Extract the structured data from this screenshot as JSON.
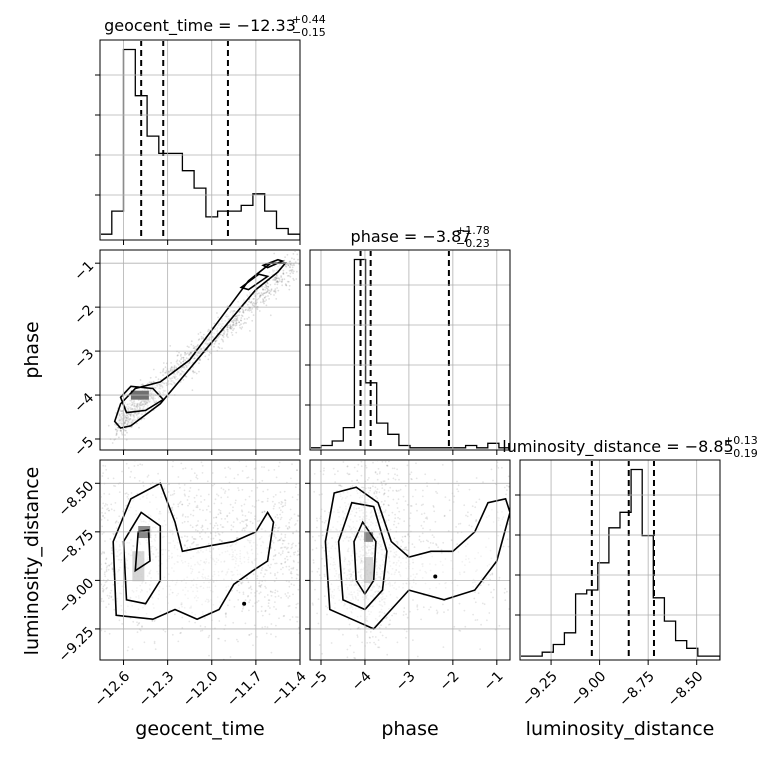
{
  "chart_data": {
    "type": "corner",
    "parameters": [
      "geocent_time",
      "phase",
      "luminosity_distance"
    ],
    "axis_labels": {
      "geocent_time": "geocent_time",
      "phase": "phase",
      "luminosity_distance": "luminosity_distance"
    },
    "titles": {
      "geocent_time": {
        "prefix": "geocent_time = ",
        "value": "−12.33",
        "plus": "+0.44",
        "minus": "−0.15"
      },
      "phase": {
        "prefix": "phase = ",
        "value": "−3.87",
        "plus": "+1.78",
        "minus": "−0.23"
      },
      "luminosity_distance": {
        "prefix": "luminosity_distance = ",
        "value": "−8.85",
        "plus": "+0.13",
        "minus": "−0.19"
      }
    },
    "ranges": {
      "geocent_time": [
        -12.76,
        -11.4
      ],
      "phase": [
        -5.25,
        -0.7
      ],
      "luminosity_distance": [
        -9.41,
        -8.38
      ]
    },
    "ticks": {
      "geocent_time": [
        -12.6,
        -12.3,
        -12.0,
        -11.7,
        -11.4
      ],
      "phase": [
        -5,
        -4,
        -3,
        -2,
        -1
      ],
      "luminosity_distance": [
        -9.25,
        -9.0,
        -8.75,
        -8.5
      ]
    },
    "tick_labels": {
      "geocent_time": [
        "−12.6",
        "−12.3",
        "−12.0",
        "−11.7",
        "−11.4"
      ],
      "phase_x": [
        "−5",
        "−4",
        "−3",
        "−2",
        "−1"
      ],
      "phase_y": [
        "−5",
        "−4",
        "−3",
        "−2",
        "−1"
      ],
      "luminosity_distance_x": [
        "−9.25",
        "−9.00",
        "−8.75",
        "−8.50"
      ],
      "luminosity_distance_y": [
        "−9.25",
        "−9.00",
        "−8.75",
        "−8.50"
      ]
    },
    "histograms": {
      "geocent_time": {
        "counts": [
          1,
          5,
          33,
          25,
          18,
          15,
          15,
          12,
          9,
          4,
          5,
          5,
          6,
          8,
          5,
          2,
          1
        ],
        "quantiles": [
          -12.48,
          -12.33,
          -11.89
        ]
      },
      "phase": {
        "counts": [
          1,
          2,
          4,
          10,
          85,
          30,
          12,
          7,
          2,
          1,
          1,
          1,
          1,
          1,
          2,
          1,
          3,
          1
        ],
        "quantiles": [
          -4.1,
          -3.87,
          -2.09
        ]
      },
      "luminosity_distance": {
        "counts": [
          1,
          1,
          2,
          4,
          7,
          17,
          18,
          25,
          34,
          38,
          49,
          32,
          16,
          10,
          5,
          3,
          1,
          1
        ],
        "quantiles": [
          -9.04,
          -8.85,
          -8.72
        ]
      }
    },
    "grid": true,
    "grid_color": "#b0b0b0",
    "density_color": "#000000",
    "contour_color": "#000000"
  }
}
